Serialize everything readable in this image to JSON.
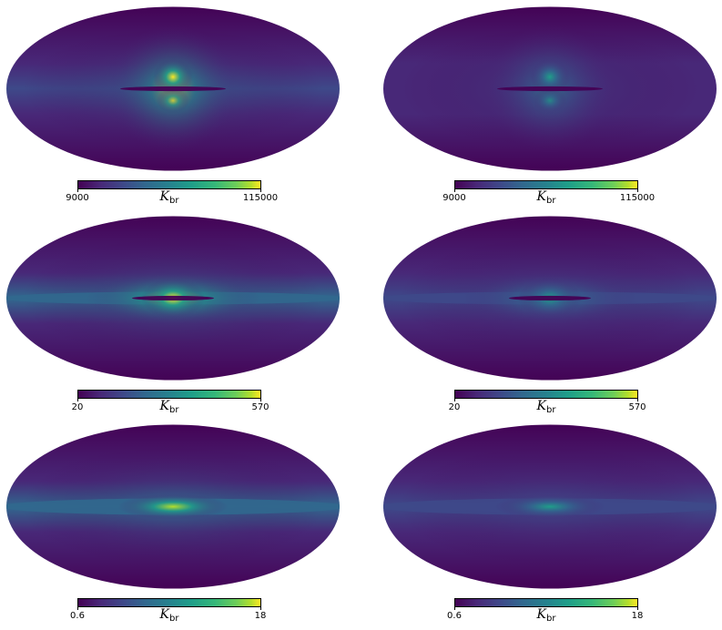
{
  "colors": {
    "viridis": [
      "#440154",
      "#482878",
      "#3e4989",
      "#31688e",
      "#26828e",
      "#1f9e89",
      "#35b779",
      "#6ece58",
      "#b5de2b",
      "#fde725"
    ]
  },
  "colorbar_label": {
    "symbol": "K",
    "subscript": "br"
  },
  "rows": [
    {
      "min_label": "9000",
      "max_label": "115000"
    },
    {
      "min_label": "20",
      "max_label": "570"
    },
    {
      "min_label": "0.6",
      "max_label": "18"
    }
  ],
  "panels": [
    {
      "id": "r1-left",
      "row": 0,
      "intensity": 1.0,
      "feature": "bulge-split",
      "dark_lane": true
    },
    {
      "id": "r1-right",
      "row": 0,
      "intensity": 0.55,
      "feature": "bulge-split",
      "dark_lane": true
    },
    {
      "id": "r2-left",
      "row": 1,
      "intensity": 1.0,
      "feature": "bulge-band",
      "dark_lane": true
    },
    {
      "id": "r2-right",
      "row": 1,
      "intensity": 0.6,
      "feature": "bulge-band",
      "dark_lane": true
    },
    {
      "id": "r3-left",
      "row": 2,
      "intensity": 1.0,
      "feature": "band",
      "dark_lane": false
    },
    {
      "id": "r3-right",
      "row": 2,
      "intensity": 0.6,
      "feature": "band",
      "dark_lane": false
    }
  ]
}
